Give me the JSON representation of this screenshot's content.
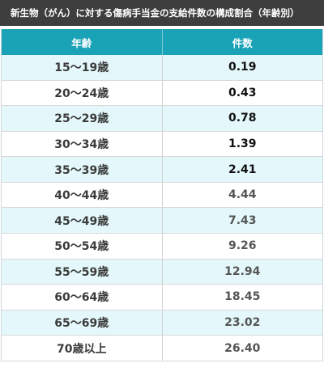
{
  "title": "新生物（がん）に対する傷病手当金の支給件数の構成割合（年齢別）",
  "headers": {
    "age": "年齢",
    "count": "件数"
  },
  "rows": [
    {
      "age": "15〜19歳",
      "value": "0.19"
    },
    {
      "age": "20〜24歳",
      "value": "0.43"
    },
    {
      "age": "25〜29歳",
      "value": "0.78"
    },
    {
      "age": "30〜34歳",
      "value": "1.39"
    },
    {
      "age": "35〜39歳",
      "value": "2.41"
    },
    {
      "age": "40〜44歳",
      "value": "4.44"
    },
    {
      "age": "45〜49歳",
      "value": "7.43"
    },
    {
      "age": "50〜54歳",
      "value": "9.26"
    },
    {
      "age": "55〜59歳",
      "value": "12.94"
    },
    {
      "age": "60〜64歳",
      "value": "18.45"
    },
    {
      "age": "65〜69歳",
      "value": "23.02"
    },
    {
      "age": "70歳以上",
      "value": "26.40"
    }
  ]
}
